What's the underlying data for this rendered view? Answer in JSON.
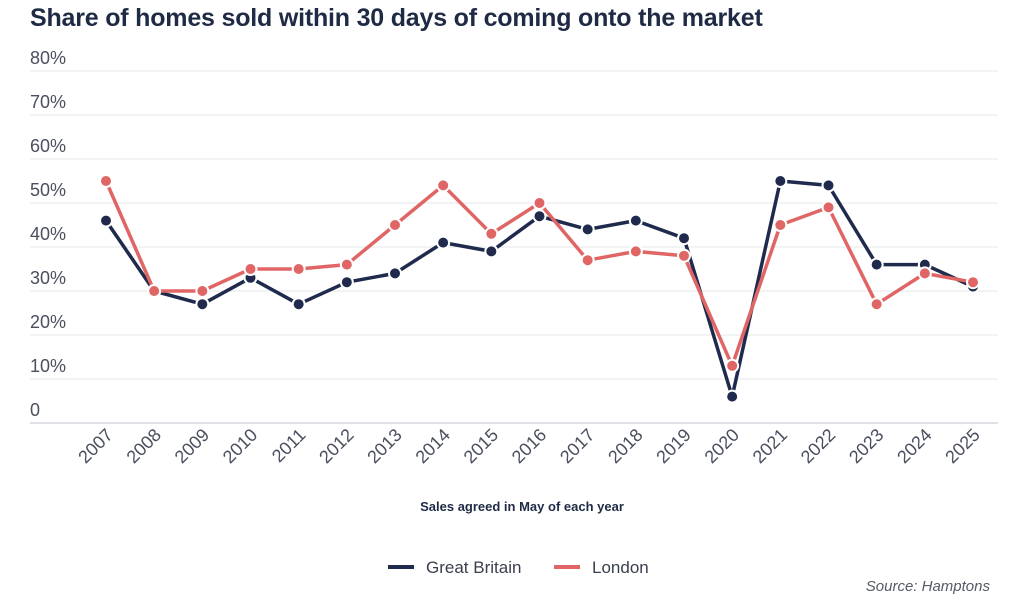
{
  "chart_data": {
    "type": "line",
    "title": "Share of homes sold within 30 days of coming onto the market",
    "xlabel": "Sales agreed in May of each year",
    "ylabel": "",
    "x": [
      "2007",
      "2008",
      "2009",
      "2010",
      "2011",
      "2012",
      "2013",
      "2014",
      "2015",
      "2016",
      "2017",
      "2018",
      "2019",
      "2020",
      "2021",
      "2022",
      "2023",
      "2024",
      "2025"
    ],
    "yticks": [
      "0",
      "10%",
      "20%",
      "30%",
      "40%",
      "50%",
      "60%",
      "70%",
      "80%"
    ],
    "ylim": [
      0,
      80
    ],
    "grid": true,
    "legend_placement": "bottom-center",
    "series": [
      {
        "name": "Great Britain",
        "color": "#1f2a4d",
        "values": [
          46,
          30,
          27,
          33,
          27,
          32,
          34,
          41,
          39,
          47,
          44,
          46,
          42,
          6,
          55,
          54,
          36,
          36,
          31
        ]
      },
      {
        "name": "London",
        "color": "#e06666",
        "values": [
          55,
          30,
          30,
          35,
          35,
          36,
          45,
          54,
          43,
          50,
          37,
          39,
          38,
          13,
          45,
          49,
          27,
          34,
          32
        ]
      }
    ],
    "source": "Source: Hamptons"
  }
}
